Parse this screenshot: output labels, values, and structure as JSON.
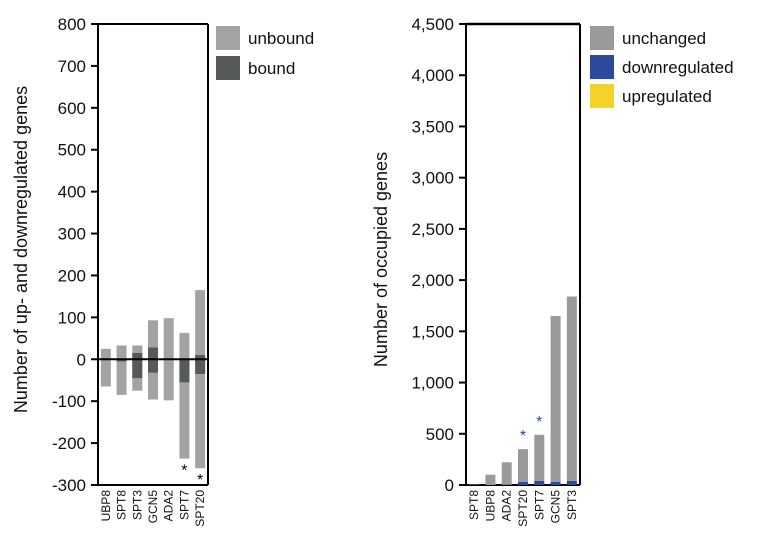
{
  "chart_data": [
    {
      "type": "bar",
      "ylabel": "Number of up- and downregulated genes",
      "ylim": [
        -300,
        800
      ],
      "yticks": [
        800,
        700,
        600,
        500,
        400,
        300,
        200,
        100,
        0,
        -100,
        -200,
        -300
      ],
      "categories": [
        "UBP8",
        "SPT8",
        "SPT3",
        "GCN5",
        "ADA2",
        "SPT7",
        "SPT20"
      ],
      "series": [
        {
          "name": "unbound",
          "color": "#a3a3a3",
          "pos": [
            25,
            33,
            33,
            93,
            98,
            63,
            165
          ],
          "neg": [
            -65,
            -85,
            -75,
            -96,
            -98,
            -237,
            -260
          ]
        },
        {
          "name": "bound",
          "color": "#555a56",
          "pos": [
            0,
            0,
            15,
            28,
            0,
            0,
            10
          ],
          "neg": [
            0,
            -5,
            -45,
            -32,
            0,
            -55,
            -35
          ]
        }
      ],
      "significant": [
        {
          "category": "SPT7",
          "marker": "*"
        },
        {
          "category": "SPT20",
          "marker": "*"
        }
      ],
      "legend": [
        {
          "label": "unbound",
          "color": "#a3a3a3"
        },
        {
          "label": "bound",
          "color": "#555a56"
        }
      ],
      "legend_placement": "right-top"
    },
    {
      "type": "bar",
      "ylabel": "Number of occupied genes",
      "ylim": [
        0,
        4500
      ],
      "yticks": [
        "4,500",
        "4,000",
        "3,500",
        "3,000",
        "2,500",
        "2,000",
        "1,500",
        "1,000",
        "500",
        "0"
      ],
      "ytick_values": [
        4500,
        4000,
        3500,
        3000,
        2500,
        2000,
        1500,
        1000,
        500,
        0
      ],
      "categories": [
        "SPT8",
        "UBP8",
        "ADA2",
        "SPT20",
        "SPT7",
        "GCN5",
        "SPT3"
      ],
      "series": [
        {
          "name": "unchanged",
          "color": "#9a9a9a",
          "values": [
            5,
            100,
            220,
            320,
            450,
            1620,
            1800
          ]
        },
        {
          "name": "downregulated",
          "color": "#2b4a9c",
          "values": [
            0,
            0,
            2,
            30,
            40,
            30,
            40
          ]
        },
        {
          "name": "upregulated",
          "color": "#f5d12a",
          "values": [
            0,
            0,
            0,
            0,
            0,
            0,
            0
          ]
        }
      ],
      "significant": [
        {
          "category": "SPT20",
          "marker": "*"
        },
        {
          "category": "SPT7",
          "marker": "*"
        }
      ],
      "legend": [
        {
          "label": "unchanged",
          "color": "#9a9a9a"
        },
        {
          "label": "downregulated",
          "color": "#2b4a9c"
        },
        {
          "label": "upregulated",
          "color": "#f5d12a"
        }
      ],
      "legend_placement": "right-top"
    }
  ]
}
